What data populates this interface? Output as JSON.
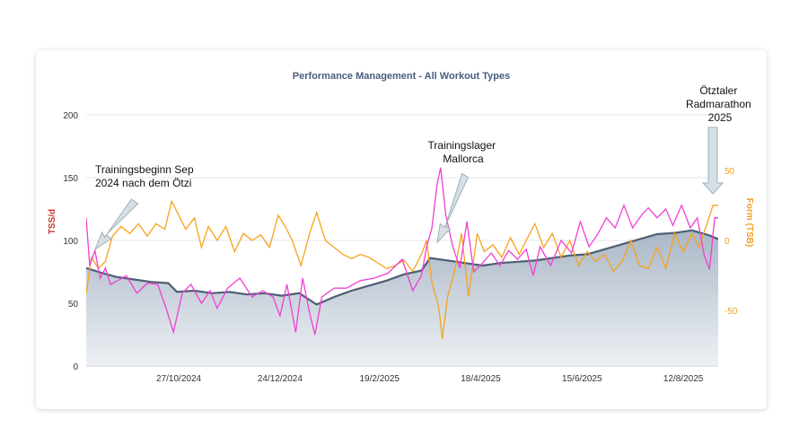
{
  "colors": {
    "ctl_fill_top": "#aab7c6",
    "ctl_fill_bottom": "#eef1f5",
    "ctl_line": "#4d5f73",
    "atl_line": "#f03fd3",
    "tsb_line": "#f7a21a",
    "title": "#4a5d7e",
    "left_axis_label": "#c0392b",
    "right_axis": "#f0a020",
    "arrow_fill": "#d6dfe5",
    "arrow_stroke": "#9fb0b8"
  },
  "chart_data": {
    "type": "line",
    "title": "Performance Management - All Workout Types",
    "ylabel_left": "TSS/d",
    "ylabel_right": "Form (TSB)",
    "ylim_left": [
      0,
      200
    ],
    "ylim_right": [
      -89.6,
      89.6
    ],
    "yticks_left": [
      "0",
      "50",
      "100",
      "150",
      "200"
    ],
    "yticks_right": [
      "50",
      "0",
      "-50"
    ],
    "grid": true,
    "x_range_days": [
      "2024-09-04",
      "2025-09-01"
    ],
    "xtick_labels": [
      "27/10/2024",
      "24/12/2024",
      "19/2/2025",
      "18/4/2025",
      "15/6/2025",
      "12/8/2025"
    ],
    "xtick_dates": [
      "2024-10-27",
      "2024-12-24",
      "2025-02-19",
      "2025-04-18",
      "2025-06-15",
      "2025-08-12"
    ],
    "series": [
      {
        "key": "ctl",
        "axis": "left",
        "style": "area",
        "points": [
          [
            "2024-09-04",
            78
          ],
          [
            "2024-09-11",
            75
          ],
          [
            "2024-09-21",
            71
          ],
          [
            "2024-10-01",
            69
          ],
          [
            "2024-10-11",
            67
          ],
          [
            "2024-10-21",
            66
          ],
          [
            "2024-10-26",
            59
          ],
          [
            "2024-11-05",
            60
          ],
          [
            "2024-11-15",
            58
          ],
          [
            "2024-11-25",
            59
          ],
          [
            "2024-12-05",
            57
          ],
          [
            "2024-12-15",
            58
          ],
          [
            "2024-12-25",
            56
          ],
          [
            "2025-01-04",
            58
          ],
          [
            "2025-01-14",
            49
          ],
          [
            "2025-01-24",
            55
          ],
          [
            "2025-02-03",
            60
          ],
          [
            "2025-02-13",
            64
          ],
          [
            "2025-02-23",
            68
          ],
          [
            "2025-03-05",
            73
          ],
          [
            "2025-03-15",
            76
          ],
          [
            "2025-03-20",
            86
          ],
          [
            "2025-03-30",
            84
          ],
          [
            "2025-04-09",
            82
          ],
          [
            "2025-04-19",
            80
          ],
          [
            "2025-04-29",
            82
          ],
          [
            "2025-05-09",
            83
          ],
          [
            "2025-05-19",
            84
          ],
          [
            "2025-05-29",
            86
          ],
          [
            "2025-06-08",
            88
          ],
          [
            "2025-06-18",
            89
          ],
          [
            "2025-06-28",
            93
          ],
          [
            "2025-07-08",
            97
          ],
          [
            "2025-07-18",
            101
          ],
          [
            "2025-07-28",
            105
          ],
          [
            "2025-08-07",
            106
          ],
          [
            "2025-08-17",
            108
          ],
          [
            "2025-08-27",
            104
          ],
          [
            "2025-09-01",
            101
          ]
        ]
      },
      {
        "key": "atl",
        "axis": "left",
        "style": "line",
        "points": [
          [
            "2024-09-04",
            118
          ],
          [
            "2024-09-06",
            80
          ],
          [
            "2024-09-09",
            92
          ],
          [
            "2024-09-12",
            70
          ],
          [
            "2024-09-15",
            78
          ],
          [
            "2024-09-18",
            65
          ],
          [
            "2024-09-22",
            68
          ],
          [
            "2024-09-27",
            72
          ],
          [
            "2024-10-03",
            58
          ],
          [
            "2024-10-09",
            66
          ],
          [
            "2024-10-15",
            65
          ],
          [
            "2024-10-20",
            45
          ],
          [
            "2024-10-24",
            27
          ],
          [
            "2024-10-29",
            58
          ],
          [
            "2024-11-03",
            65
          ],
          [
            "2024-11-09",
            50
          ],
          [
            "2024-11-14",
            60
          ],
          [
            "2024-11-18",
            46
          ],
          [
            "2024-11-24",
            62
          ],
          [
            "2024-12-01",
            70
          ],
          [
            "2024-12-08",
            55
          ],
          [
            "2024-12-14",
            60
          ],
          [
            "2024-12-20",
            55
          ],
          [
            "2024-12-24",
            40
          ],
          [
            "2024-12-28",
            65
          ],
          [
            "2025-01-02",
            27
          ],
          [
            "2025-01-06",
            70
          ],
          [
            "2025-01-10",
            42
          ],
          [
            "2025-01-13",
            25
          ],
          [
            "2025-01-17",
            55
          ],
          [
            "2025-01-24",
            62
          ],
          [
            "2025-01-31",
            62
          ],
          [
            "2025-02-08",
            68
          ],
          [
            "2025-02-16",
            70
          ],
          [
            "2025-02-24",
            74
          ],
          [
            "2025-03-04",
            85
          ],
          [
            "2025-03-10",
            60
          ],
          [
            "2025-03-15",
            72
          ],
          [
            "2025-03-18",
            95
          ],
          [
            "2025-03-21",
            110
          ],
          [
            "2025-03-24",
            145
          ],
          [
            "2025-03-26",
            158
          ],
          [
            "2025-03-29",
            120
          ],
          [
            "2025-04-02",
            95
          ],
          [
            "2025-04-06",
            78
          ],
          [
            "2025-04-10",
            115
          ],
          [
            "2025-04-14",
            75
          ],
          [
            "2025-04-19",
            82
          ],
          [
            "2025-04-24",
            90
          ],
          [
            "2025-04-29",
            80
          ],
          [
            "2025-05-04",
            92
          ],
          [
            "2025-05-09",
            85
          ],
          [
            "2025-05-14",
            93
          ],
          [
            "2025-05-18",
            72
          ],
          [
            "2025-05-22",
            95
          ],
          [
            "2025-05-28",
            80
          ],
          [
            "2025-06-03",
            100
          ],
          [
            "2025-06-09",
            90
          ],
          [
            "2025-06-14",
            115
          ],
          [
            "2025-06-19",
            95
          ],
          [
            "2025-06-24",
            105
          ],
          [
            "2025-06-29",
            118
          ],
          [
            "2025-07-04",
            110
          ],
          [
            "2025-07-09",
            128
          ],
          [
            "2025-07-14",
            110
          ],
          [
            "2025-07-19",
            120
          ],
          [
            "2025-07-23",
            126
          ],
          [
            "2025-07-28",
            118
          ],
          [
            "2025-08-02",
            125
          ],
          [
            "2025-08-06",
            112
          ],
          [
            "2025-08-11",
            128
          ],
          [
            "2025-08-16",
            110
          ],
          [
            "2025-08-20",
            118
          ],
          [
            "2025-08-24",
            88
          ],
          [
            "2025-08-27",
            77
          ],
          [
            "2025-08-30",
            118
          ],
          [
            "2025-09-01",
            118
          ]
        ]
      },
      {
        "key": "tsb",
        "axis": "right",
        "style": "line",
        "points": [
          [
            "2024-09-04",
            -38
          ],
          [
            "2024-09-07",
            -12
          ],
          [
            "2024-09-11",
            -20
          ],
          [
            "2024-09-15",
            -15
          ],
          [
            "2024-09-19",
            3
          ],
          [
            "2024-09-24",
            10
          ],
          [
            "2024-09-29",
            5
          ],
          [
            "2024-10-04",
            12
          ],
          [
            "2024-10-09",
            3
          ],
          [
            "2024-10-14",
            12
          ],
          [
            "2024-10-19",
            8
          ],
          [
            "2024-10-23",
            28
          ],
          [
            "2024-10-27",
            18
          ],
          [
            "2024-10-31",
            8
          ],
          [
            "2024-11-05",
            16
          ],
          [
            "2024-11-09",
            -5
          ],
          [
            "2024-11-13",
            10
          ],
          [
            "2024-11-18",
            0
          ],
          [
            "2024-11-23",
            10
          ],
          [
            "2024-11-28",
            -8
          ],
          [
            "2024-12-03",
            5
          ],
          [
            "2024-12-08",
            0
          ],
          [
            "2024-12-13",
            4
          ],
          [
            "2024-12-18",
            -5
          ],
          [
            "2024-12-23",
            18
          ],
          [
            "2024-12-27",
            10
          ],
          [
            "2024-12-31",
            0
          ],
          [
            "2025-01-05",
            -18
          ],
          [
            "2025-01-10",
            5
          ],
          [
            "2025-01-14",
            20
          ],
          [
            "2025-01-19",
            0
          ],
          [
            "2025-01-24",
            -5
          ],
          [
            "2025-01-29",
            -10
          ],
          [
            "2025-02-03",
            -13
          ],
          [
            "2025-02-08",
            -10
          ],
          [
            "2025-02-13",
            -12
          ],
          [
            "2025-02-18",
            -16
          ],
          [
            "2025-02-23",
            -20
          ],
          [
            "2025-02-28",
            -18
          ],
          [
            "2025-03-05",
            -14
          ],
          [
            "2025-03-10",
            -22
          ],
          [
            "2025-03-15",
            -10
          ],
          [
            "2025-03-18",
            0
          ],
          [
            "2025-03-21",
            -30
          ],
          [
            "2025-03-25",
            -48
          ],
          [
            "2025-03-27",
            -70
          ],
          [
            "2025-03-30",
            -40
          ],
          [
            "2025-04-03",
            -22
          ],
          [
            "2025-04-07",
            5
          ],
          [
            "2025-04-11",
            -40
          ],
          [
            "2025-04-16",
            5
          ],
          [
            "2025-04-20",
            -8
          ],
          [
            "2025-04-25",
            -3
          ],
          [
            "2025-04-30",
            -12
          ],
          [
            "2025-05-05",
            2
          ],
          [
            "2025-05-10",
            -10
          ],
          [
            "2025-05-14",
            0
          ],
          [
            "2025-05-19",
            12
          ],
          [
            "2025-05-24",
            -5
          ],
          [
            "2025-05-29",
            5
          ],
          [
            "2025-06-03",
            -12
          ],
          [
            "2025-06-08",
            0
          ],
          [
            "2025-06-13",
            -18
          ],
          [
            "2025-06-18",
            -8
          ],
          [
            "2025-06-23",
            -15
          ],
          [
            "2025-06-28",
            -10
          ],
          [
            "2025-07-03",
            -22
          ],
          [
            "2025-07-08",
            -15
          ],
          [
            "2025-07-13",
            0
          ],
          [
            "2025-07-18",
            -18
          ],
          [
            "2025-07-23",
            -20
          ],
          [
            "2025-07-28",
            -5
          ],
          [
            "2025-08-02",
            -20
          ],
          [
            "2025-08-07",
            5
          ],
          [
            "2025-08-12",
            -8
          ],
          [
            "2025-08-17",
            5
          ],
          [
            "2025-08-21",
            -5
          ],
          [
            "2025-08-25",
            10
          ],
          [
            "2025-08-29",
            25
          ],
          [
            "2025-09-01",
            25
          ]
        ]
      }
    ],
    "annotations": [
      {
        "lines": [
          "Trainingsbeginn Sep",
          "2024 nach dem Ötzi"
        ]
      },
      {
        "lines": [
          "Trainingslager",
          "Mallorca"
        ]
      },
      {
        "lines": [
          "Ötztaler",
          "Radmarathon",
          "2025"
        ]
      }
    ]
  }
}
